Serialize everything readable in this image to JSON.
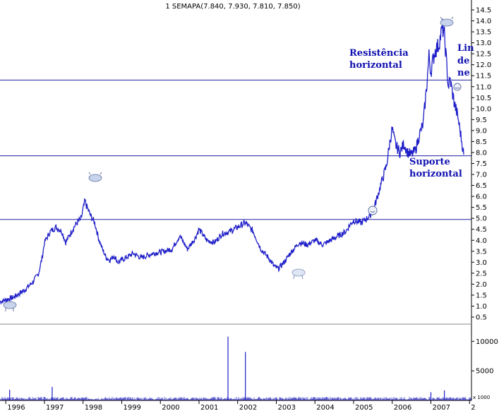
{
  "chart_data": {
    "type": "line",
    "title": "1 SEMAPA(7.840, 7.930, 7.810, 7.850)",
    "price_axis": {
      "ticks": [
        "14.5",
        "14.0",
        "13.5",
        "13.0",
        "12.5",
        "12.0",
        "11.5",
        "11.0",
        "10.5",
        "10.0",
        "9.5",
        "9.0",
        "8.5",
        "8.0",
        "7.5",
        "7.0",
        "6.5",
        "6.0",
        "5.5",
        "5.0",
        "4.5",
        "4.0",
        "3.5",
        "3.0",
        "2.5",
        "2.0",
        "1.5",
        "1.0",
        "0.5"
      ],
      "ylim": [
        0.5,
        14.5
      ]
    },
    "volume_axis": {
      "ticks": [
        "10000",
        "5000"
      ],
      "unit_label": "x 1000"
    },
    "x_axis": {
      "ticks": [
        "1996",
        "1997",
        "1998",
        "1999",
        "2000",
        "2001",
        "2002",
        "2003",
        "2004",
        "2005",
        "2006",
        "2007",
        "2"
      ],
      "xlim": [
        1995.85,
        2008.05
      ]
    },
    "series": [
      {
        "values": [
          [
            1995.85,
            1.2
          ],
          [
            1996.2,
            1.4
          ],
          [
            1996.5,
            1.75
          ],
          [
            1996.7,
            2.1
          ],
          [
            1996.85,
            2.5
          ],
          [
            1996.95,
            3.3
          ],
          [
            1997.0,
            3.9
          ],
          [
            1997.15,
            4.4
          ],
          [
            1997.3,
            4.6
          ],
          [
            1997.45,
            4.4
          ],
          [
            1997.55,
            3.9
          ],
          [
            1997.7,
            4.4
          ],
          [
            1997.8,
            4.7
          ],
          [
            1997.95,
            5.0
          ],
          [
            1998.05,
            5.8
          ],
          [
            1998.1,
            5.5
          ],
          [
            1998.2,
            5.1
          ],
          [
            1998.3,
            4.8
          ],
          [
            1998.4,
            4.1
          ],
          [
            1998.5,
            3.6
          ],
          [
            1998.6,
            3.2
          ],
          [
            1998.7,
            3.1
          ],
          [
            1998.8,
            3.3
          ],
          [
            1998.9,
            3.0
          ],
          [
            1999.1,
            3.2
          ],
          [
            1999.3,
            3.4
          ],
          [
            1999.5,
            3.2
          ],
          [
            1999.8,
            3.4
          ],
          [
            2000.1,
            3.5
          ],
          [
            2000.3,
            3.6
          ],
          [
            2000.5,
            4.2
          ],
          [
            2000.7,
            3.6
          ],
          [
            2000.9,
            4.1
          ],
          [
            2001.0,
            4.5
          ],
          [
            2001.2,
            4.0
          ],
          [
            2001.4,
            3.9
          ],
          [
            2001.6,
            4.3
          ],
          [
            2001.8,
            4.4
          ],
          [
            2002.0,
            4.6
          ],
          [
            2002.2,
            4.8
          ],
          [
            2002.4,
            4.4
          ],
          [
            2002.6,
            3.6
          ],
          [
            2002.8,
            3.2
          ],
          [
            2002.95,
            2.8
          ],
          [
            2003.05,
            2.7
          ],
          [
            2003.2,
            3.0
          ],
          [
            2003.4,
            3.5
          ],
          [
            2003.6,
            3.9
          ],
          [
            2003.8,
            3.8
          ],
          [
            2004.0,
            4.0
          ],
          [
            2004.2,
            3.8
          ],
          [
            2004.4,
            4.0
          ],
          [
            2004.6,
            4.2
          ],
          [
            2004.8,
            4.4
          ],
          [
            2004.9,
            4.7
          ],
          [
            2005.0,
            4.9
          ],
          [
            2005.2,
            4.8
          ],
          [
            2005.35,
            5.0
          ],
          [
            2005.5,
            5.3
          ],
          [
            2005.6,
            5.9
          ],
          [
            2005.7,
            6.5
          ],
          [
            2005.8,
            7.1
          ],
          [
            2005.85,
            7.4
          ],
          [
            2005.95,
            8.6
          ],
          [
            2006.0,
            9.1
          ],
          [
            2006.05,
            8.6
          ],
          [
            2006.1,
            8.3
          ],
          [
            2006.2,
            8.0
          ],
          [
            2006.3,
            8.4
          ],
          [
            2006.4,
            8.0
          ],
          [
            2006.5,
            7.9
          ],
          [
            2006.6,
            8.1
          ],
          [
            2006.7,
            8.8
          ],
          [
            2006.8,
            9.3
          ],
          [
            2006.9,
            11.2
          ],
          [
            2006.95,
            12.4
          ],
          [
            2007.0,
            11.7
          ],
          [
            2007.1,
            12.6
          ],
          [
            2007.2,
            12.9
          ],
          [
            2007.3,
            13.7
          ],
          [
            2007.35,
            13.3
          ],
          [
            2007.4,
            12.2
          ],
          [
            2007.45,
            11.0
          ],
          [
            2007.5,
            11.3
          ],
          [
            2007.6,
            10.3
          ],
          [
            2007.7,
            9.6
          ],
          [
            2007.8,
            8.5
          ],
          [
            2007.85,
            7.9
          ]
        ]
      }
    ],
    "volume_spikes": [
      [
        1996.1,
        1800
      ],
      [
        1997.2,
        2300
      ],
      [
        2001.75,
        10800
      ],
      [
        2002.2,
        8200
      ],
      [
        2007.0,
        1400
      ],
      [
        2007.35,
        1700
      ]
    ],
    "horizontal_lines": [
      11.3,
      7.85,
      4.95
    ],
    "annotations": {
      "resistance_line1": "Resistência",
      "resistance_line2": "horizontal",
      "support_line1": "Suporte",
      "support_line2": "horizontal",
      "trend_line1": "Lin",
      "trend_line2": "de",
      "trend_line3": "ne"
    },
    "colors": {
      "price": "#1f1fc8",
      "volume": "#1f1fc8",
      "hline": "#2020a0",
      "annotation": "#1010b0"
    }
  }
}
